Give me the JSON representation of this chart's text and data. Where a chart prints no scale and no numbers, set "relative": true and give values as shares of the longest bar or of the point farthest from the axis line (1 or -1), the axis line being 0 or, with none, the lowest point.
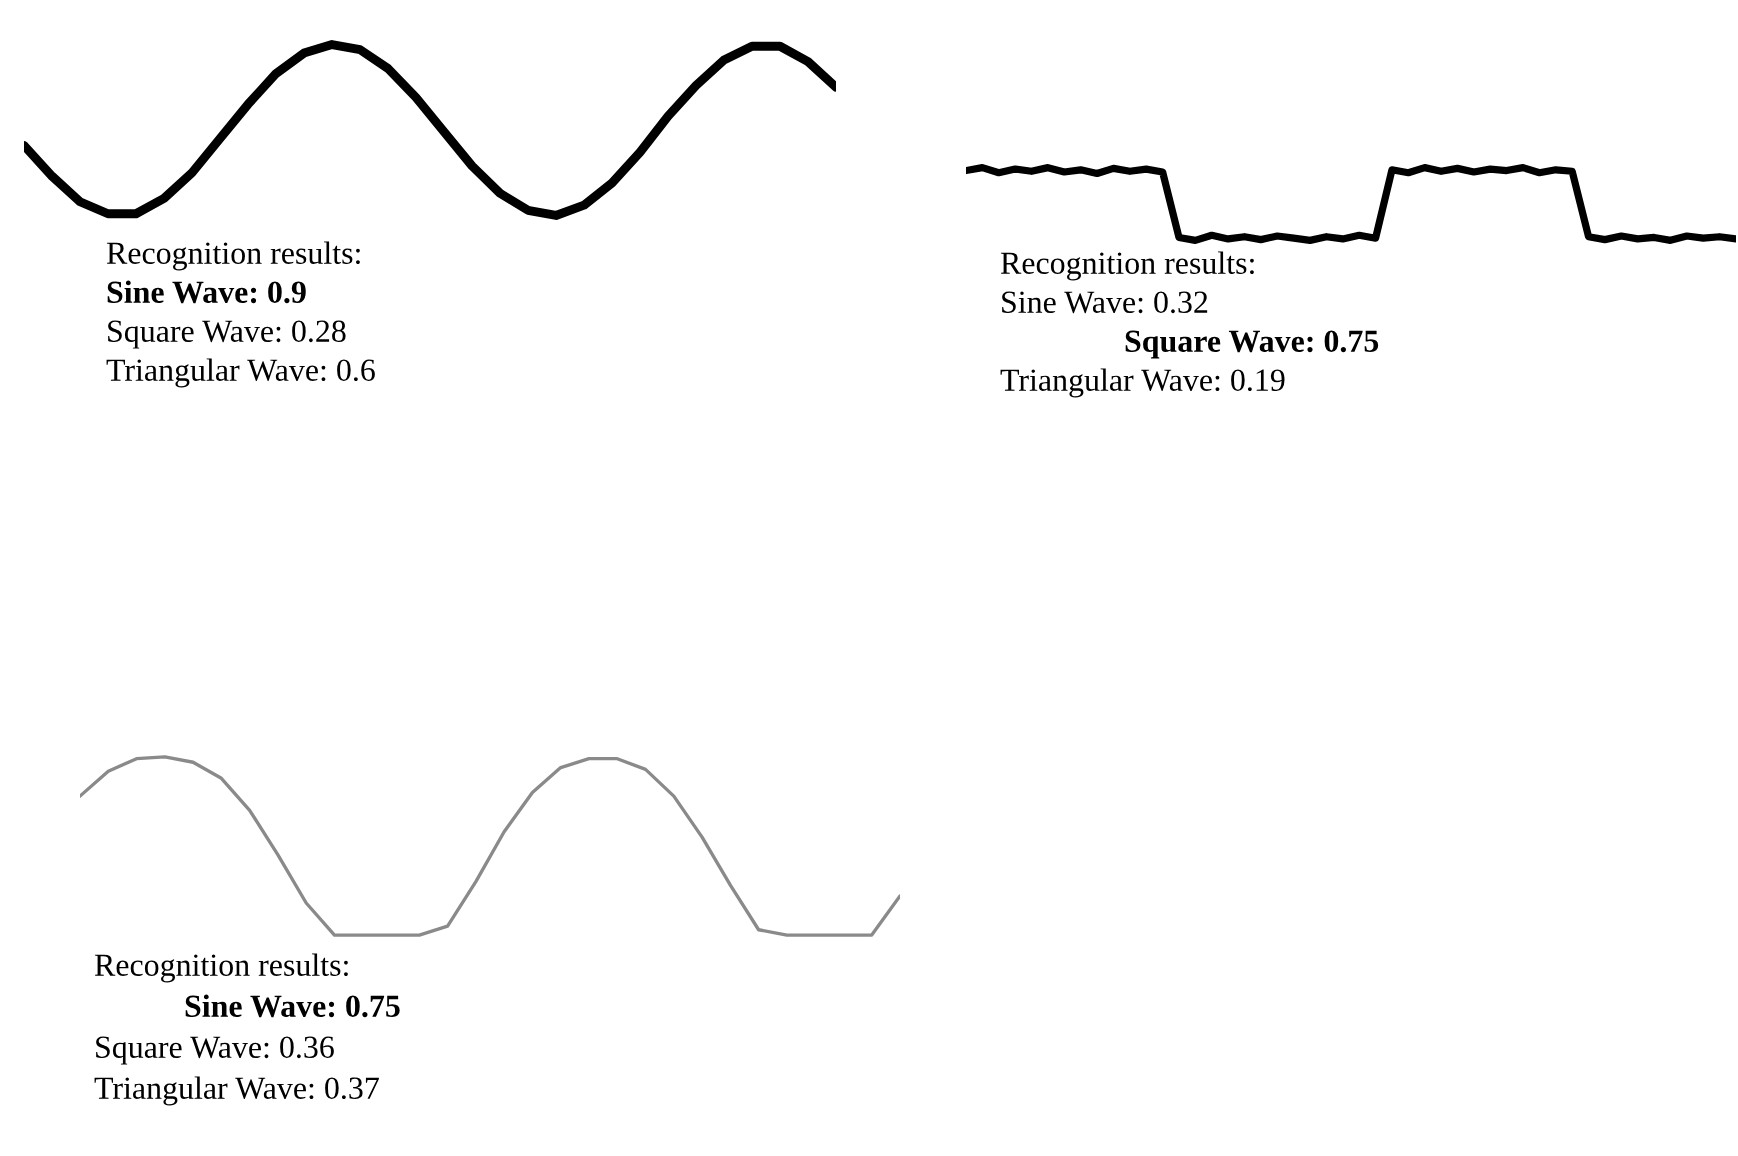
{
  "chart_data": [
    {
      "type": "line",
      "relative": true,
      "categories": [
        null,
        null,
        null,
        null,
        null,
        null,
        null,
        null,
        null,
        null,
        null,
        null,
        null,
        null,
        null,
        null,
        null,
        null,
        null,
        null,
        null,
        null,
        null,
        null,
        null,
        null,
        null,
        null,
        null,
        null
      ],
      "series": [
        {
          "color": "#000000",
          "values": [
            0.41,
            0.23,
            0.08,
            0.01,
            0.01,
            0.1,
            0.25,
            0.45,
            0.65,
            0.83,
            0.95,
            1.0,
            0.97,
            0.86,
            0.69,
            0.49,
            0.29,
            0.13,
            0.03,
            0.0,
            0.06,
            0.19,
            0.37,
            0.58,
            0.76,
            0.91,
            0.99,
            0.99,
            0.9,
            0.75
          ]
        }
      ],
      "annotations": [
        "Recognition results:",
        "Sine Wave: 0.9",
        "Square Wave: 0.28",
        "Triangular Wave: 0.6"
      ]
    },
    {
      "type": "line",
      "relative": true,
      "categories": [
        null,
        null,
        null,
        null,
        null,
        null,
        null,
        null,
        null,
        null,
        null,
        null,
        null,
        null,
        null,
        null,
        null,
        null,
        null,
        null,
        null,
        null,
        null,
        null,
        null,
        null,
        null,
        null,
        null,
        null,
        null,
        null,
        null,
        null,
        null,
        null,
        null,
        null,
        null,
        null,
        null,
        null,
        null,
        null,
        null,
        null,
        null,
        null
      ],
      "series": [
        {
          "color": "#000000",
          "values": [
            0.96,
            1.0,
            0.93,
            0.98,
            0.95,
            1.0,
            0.94,
            0.97,
            0.92,
            0.99,
            0.95,
            0.98,
            0.94,
            0.04,
            0.0,
            0.07,
            0.02,
            0.05,
            0.01,
            0.06,
            0.03,
            0.0,
            0.05,
            0.02,
            0.07,
            0.03,
            0.97,
            0.93,
            1.0,
            0.95,
            0.99,
            0.94,
            0.98,
            0.96,
            1.0,
            0.93,
            0.97,
            0.95,
            0.05,
            0.01,
            0.06,
            0.02,
            0.04,
            0.0,
            0.06,
            0.03,
            0.05,
            0.02
          ]
        }
      ],
      "annotations": [
        "Recognition results:",
        "Sine Wave: 0.32",
        "Square Wave: 0.75",
        "Triangular Wave: 0.19"
      ]
    },
    {
      "type": "line",
      "relative": true,
      "categories": [
        null,
        null,
        null,
        null,
        null,
        null,
        null,
        null,
        null,
        null,
        null,
        null,
        null,
        null,
        null,
        null,
        null,
        null,
        null,
        null,
        null,
        null,
        null,
        null,
        null,
        null,
        null,
        null,
        null,
        null
      ],
      "series": [
        {
          "color": "#8a8a8a",
          "values": [
            0.78,
            0.92,
            0.99,
            1.0,
            0.97,
            0.88,
            0.7,
            0.45,
            0.18,
            0.0,
            0.0,
            0.0,
            0.0,
            0.05,
            0.3,
            0.58,
            0.8,
            0.94,
            0.99,
            0.99,
            0.93,
            0.78,
            0.55,
            0.28,
            0.03,
            0.0,
            0.0,
            0.0,
            0.0,
            0.22
          ]
        }
      ],
      "annotations": [
        "Recognition results:",
        "Sine Wave: 0.75",
        "Square Wave: 0.36",
        "Triangular Wave: 0.37"
      ]
    }
  ]
}
